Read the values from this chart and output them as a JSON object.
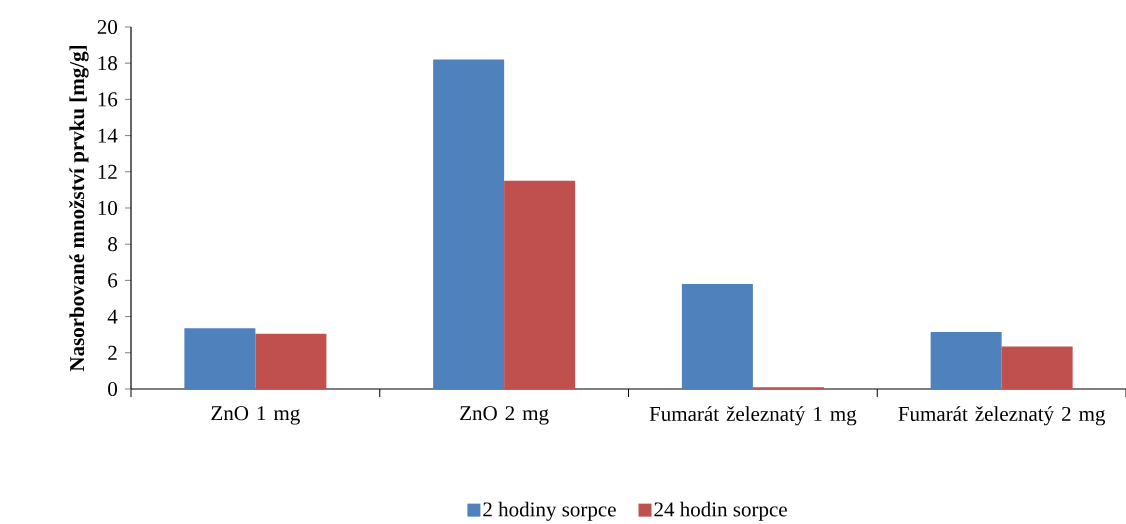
{
  "chart_data": {
    "type": "bar",
    "ylabel": "Nasorbované množství prvku [mg/g]",
    "categories": [
      "ZnO 1 mg",
      "ZnO 2 mg",
      "Fumarát železnatý 1 mg",
      "Fumarát železnatý 2 mg"
    ],
    "series": [
      {
        "name": "2 hodiny sorpce",
        "color": "#4f81bd",
        "values": [
          3.35,
          18.2,
          5.8,
          3.15
        ]
      },
      {
        "name": "24 hodin sorpce",
        "color": "#c0504d",
        "values": [
          3.05,
          11.5,
          0.1,
          2.35
        ]
      }
    ],
    "ylim": [
      0,
      20
    ],
    "yticks": [
      0,
      2,
      4,
      6,
      8,
      10,
      12,
      14,
      16,
      18,
      20
    ],
    "legend": "bottom",
    "grid": false
  }
}
